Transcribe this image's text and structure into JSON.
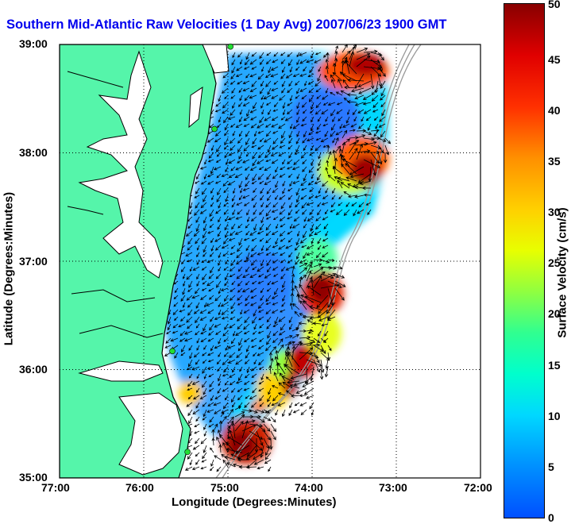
{
  "title": "Southern Mid-Atlantic Raw Velocities (1 Day Avg) 2007/06/23 1900 GMT",
  "xlabel": "Longitude (Degrees:Minutes)",
  "ylabel": "Latitude (Degrees:Minutes)",
  "colorbar": {
    "label": "Surface Velocity (cm/s)",
    "ticks": [
      "0",
      "5",
      "10",
      "15",
      "20",
      "25",
      "30",
      "35",
      "40",
      "45",
      "50"
    ],
    "range": [
      0,
      50
    ]
  },
  "x_ticks": [
    "77:00",
    "76:00",
    "75:00",
    "74:00",
    "73:00",
    "72:00"
  ],
  "y_ticks": [
    "39:00",
    "38:00",
    "37:00",
    "36:00",
    "35:00"
  ],
  "map": {
    "lon_range": [
      -77,
      -72
    ],
    "lat_range": [
      35,
      39
    ],
    "grid": true,
    "colors": {
      "land": "#55f5aa",
      "coast": "#000000",
      "station": "#22dd33",
      "bathymetry": "#999999",
      "vector": "#000000"
    },
    "stations": [
      {
        "lon": -74.97,
        "lat": 38.98
      },
      {
        "lon": -75.16,
        "lat": 38.22
      },
      {
        "lon": -75.66,
        "lat": 36.17
      },
      {
        "lon": -75.48,
        "lat": 35.24
      }
    ]
  }
}
